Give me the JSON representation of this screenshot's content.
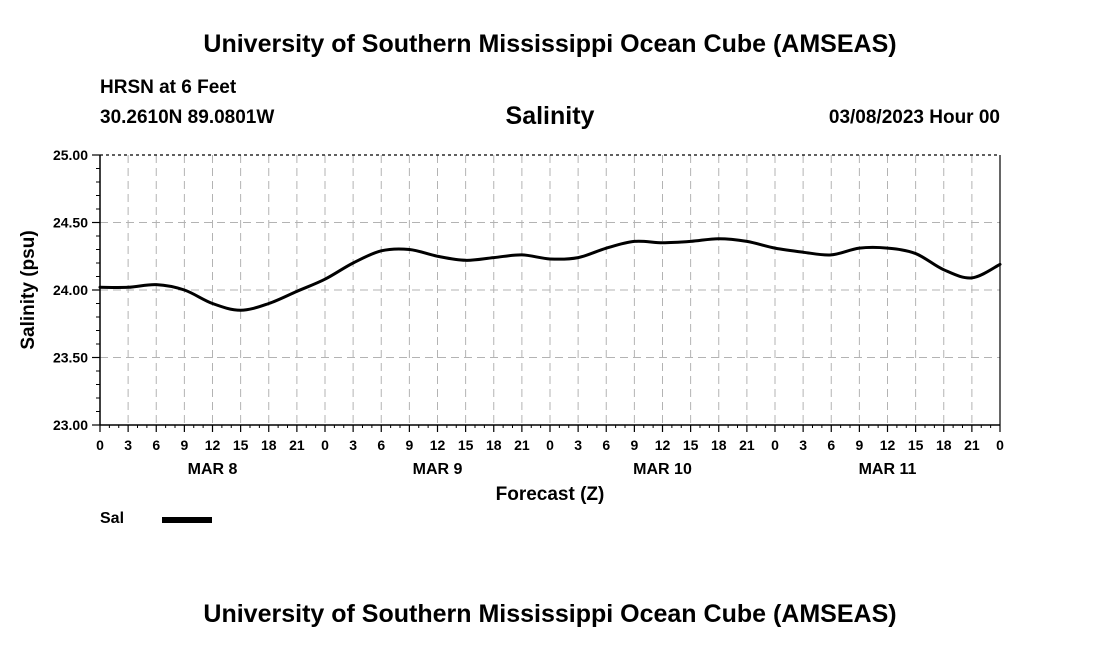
{
  "page": {
    "top_title": "University of Southern Mississippi Ocean Cube (AMSEAS)",
    "bottom_title": "University of Southern Mississippi Ocean Cube (AMSEAS)",
    "station": "HRSN at 6 Feet",
    "coordinates": "30.2610N  89.0801W",
    "datetime": "03/08/2023 Hour 00"
  },
  "chart_data": {
    "type": "line",
    "title": "Salinity",
    "xlabel": "Forecast (Z)",
    "ylabel": "Salinity (psu)",
    "ylim": [
      23.0,
      25.0
    ],
    "y_ticks": [
      "23.00",
      "23.50",
      "24.00",
      "24.50",
      "25.00"
    ],
    "x_range_hours": [
      0,
      96
    ],
    "x_tick_labels": [
      "0",
      "3",
      "6",
      "9",
      "12",
      "15",
      "18",
      "21",
      "0",
      "3",
      "6",
      "9",
      "12",
      "15",
      "18",
      "21",
      "0",
      "3",
      "6",
      "9",
      "12",
      "15",
      "18",
      "21",
      "0",
      "3",
      "6",
      "9",
      "12",
      "15",
      "18",
      "21",
      "0"
    ],
    "day_labels": [
      {
        "label": "MAR 8",
        "hour": 12
      },
      {
        "label": "MAR 9",
        "hour": 36
      },
      {
        "label": "MAR 10",
        "hour": 60
      },
      {
        "label": "MAR 11",
        "hour": 84
      }
    ],
    "grid": true,
    "series": [
      {
        "name": "Sal",
        "color": "#000000",
        "x": [
          0,
          3,
          6,
          9,
          12,
          15,
          18,
          21,
          24,
          27,
          30,
          33,
          36,
          39,
          42,
          45,
          48,
          51,
          54,
          57,
          60,
          63,
          66,
          69,
          72,
          75,
          78,
          81,
          84,
          87,
          90,
          93,
          96
        ],
        "y": [
          24.02,
          24.02,
          24.04,
          24.0,
          23.9,
          23.85,
          23.9,
          23.99,
          24.08,
          24.2,
          24.29,
          24.3,
          24.25,
          24.22,
          24.24,
          24.26,
          24.23,
          24.24,
          24.31,
          24.36,
          24.35,
          24.36,
          24.38,
          24.36,
          24.31,
          24.28,
          24.26,
          24.31,
          24.31,
          24.27,
          24.15,
          24.09,
          24.19
        ]
      }
    ],
    "legend": {
      "label": "Sal",
      "placement": "bottom-left"
    }
  }
}
